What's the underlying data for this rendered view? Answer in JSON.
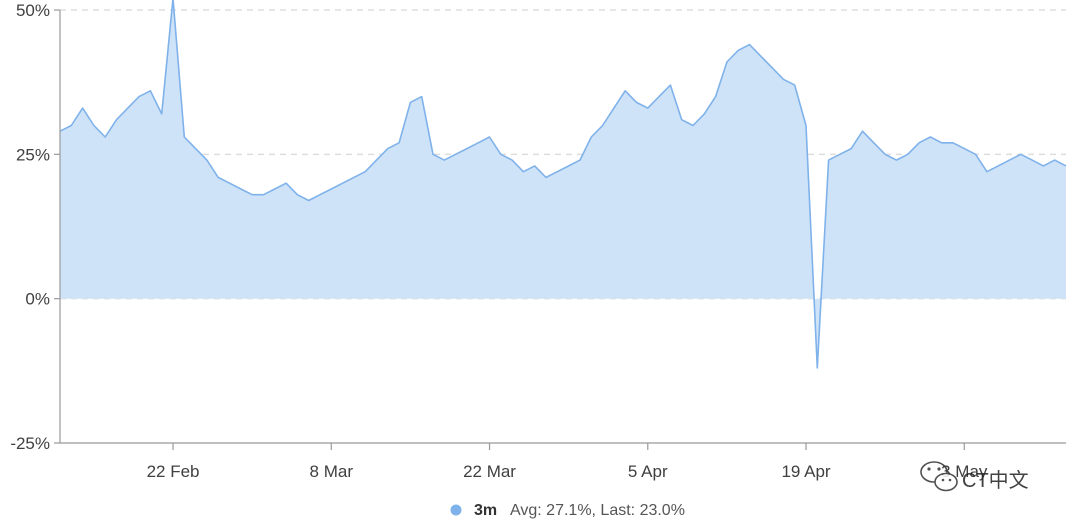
{
  "chart_data": {
    "type": "area",
    "title": "",
    "xlabel": "",
    "ylabel": "",
    "ylim": [
      -25,
      50
    ],
    "xlim": [
      "2021-02-12",
      "2021-05-12"
    ],
    "y_ticks": [
      {
        "value": 50,
        "label": "50%"
      },
      {
        "value": 25,
        "label": "25%"
      },
      {
        "value": 0,
        "label": "0%"
      },
      {
        "value": -25,
        "label": "-25%"
      }
    ],
    "x_ticks": [
      {
        "date": "2021-02-22",
        "label": "22 Feb"
      },
      {
        "date": "2021-03-08",
        "label": "8 Mar"
      },
      {
        "date": "2021-03-22",
        "label": "22 Mar"
      },
      {
        "date": "2021-04-05",
        "label": "5 Apr"
      },
      {
        "date": "2021-04-19",
        "label": "19 Apr"
      },
      {
        "date": "2021-05-03",
        "label": "3 May"
      }
    ],
    "grid": "horizontal dashed",
    "legend_position": "bottom-center",
    "colors": {
      "line": "#7fb2ea",
      "fill": "#cfe3f8",
      "grid": "#dddddd",
      "axis": "#999999"
    },
    "series": [
      {
        "name": "3m",
        "avg_label": "Avg: 27.1%, Last: 23.0%",
        "x": [
          "2021-02-12",
          "2021-02-13",
          "2021-02-14",
          "2021-02-15",
          "2021-02-16",
          "2021-02-17",
          "2021-02-18",
          "2021-02-19",
          "2021-02-20",
          "2021-02-21",
          "2021-02-22",
          "2021-02-23",
          "2021-02-24",
          "2021-02-25",
          "2021-02-26",
          "2021-02-27",
          "2021-02-28",
          "2021-03-01",
          "2021-03-02",
          "2021-03-03",
          "2021-03-04",
          "2021-03-05",
          "2021-03-06",
          "2021-03-07",
          "2021-03-08",
          "2021-03-09",
          "2021-03-10",
          "2021-03-11",
          "2021-03-12",
          "2021-03-13",
          "2021-03-14",
          "2021-03-15",
          "2021-03-16",
          "2021-03-17",
          "2021-03-18",
          "2021-03-19",
          "2021-03-20",
          "2021-03-21",
          "2021-03-22",
          "2021-03-23",
          "2021-03-24",
          "2021-03-25",
          "2021-03-26",
          "2021-03-27",
          "2021-03-28",
          "2021-03-29",
          "2021-03-30",
          "2021-03-31",
          "2021-04-01",
          "2021-04-02",
          "2021-04-03",
          "2021-04-04",
          "2021-04-05",
          "2021-04-06",
          "2021-04-07",
          "2021-04-08",
          "2021-04-09",
          "2021-04-10",
          "2021-04-11",
          "2021-04-12",
          "2021-04-13",
          "2021-04-14",
          "2021-04-15",
          "2021-04-16",
          "2021-04-17",
          "2021-04-18",
          "2021-04-19",
          "2021-04-20",
          "2021-04-21",
          "2021-04-22",
          "2021-04-23",
          "2021-04-24",
          "2021-04-25",
          "2021-04-26",
          "2021-04-27",
          "2021-04-28",
          "2021-04-29",
          "2021-04-30",
          "2021-05-01",
          "2021-05-02",
          "2021-05-03",
          "2021-05-04",
          "2021-05-05",
          "2021-05-06",
          "2021-05-07",
          "2021-05-08",
          "2021-05-09",
          "2021-05-10",
          "2021-05-11",
          "2021-05-12"
        ],
        "values": [
          29,
          30,
          33,
          30,
          28,
          31,
          33,
          35,
          36,
          32,
          52,
          28,
          26,
          24,
          21,
          20,
          19,
          18,
          18,
          19,
          20,
          18,
          17,
          18,
          19,
          20,
          21,
          22,
          24,
          26,
          27,
          34,
          35,
          25,
          24,
          25,
          26,
          27,
          28,
          25,
          24,
          22,
          23,
          21,
          22,
          23,
          24,
          28,
          30,
          33,
          36,
          34,
          33,
          35,
          37,
          31,
          30,
          32,
          35,
          41,
          43,
          44,
          42,
          40,
          38,
          37,
          30,
          -12,
          24,
          25,
          26,
          29,
          27,
          25,
          24,
          25,
          27,
          28,
          27,
          27,
          26,
          25,
          22,
          23,
          24,
          25,
          24,
          23,
          24,
          23
        ]
      }
    ]
  },
  "legend": {
    "series_name": "3m",
    "stats": "Avg: 27.1%, Last: 23.0%"
  },
  "watermark": {
    "text": "CT中文"
  }
}
